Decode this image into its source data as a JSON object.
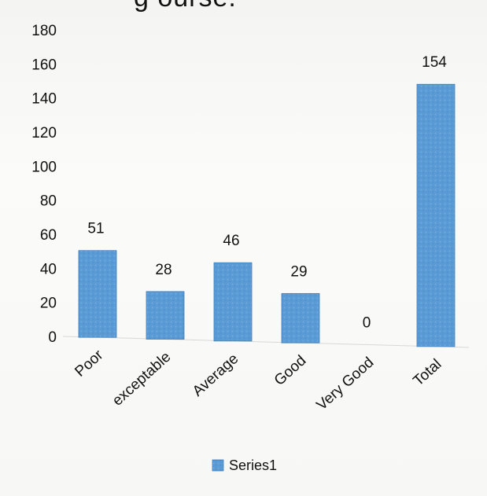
{
  "chart_data": {
    "type": "bar",
    "title_fragment": "g   ourse.",
    "categories": [
      "Poor",
      "exceptable",
      "Average",
      "Good",
      "Very Good",
      "Total"
    ],
    "series": [
      {
        "name": "Series1",
        "values": [
          51,
          28,
          46,
          29,
          0,
          154
        ],
        "color": "#5b9bd5"
      }
    ],
    "ylim": [
      0,
      180
    ],
    "yticks": [
      0,
      20,
      40,
      60,
      80,
      100,
      120,
      140,
      160,
      180
    ],
    "grid": false,
    "legend": "bottom"
  }
}
